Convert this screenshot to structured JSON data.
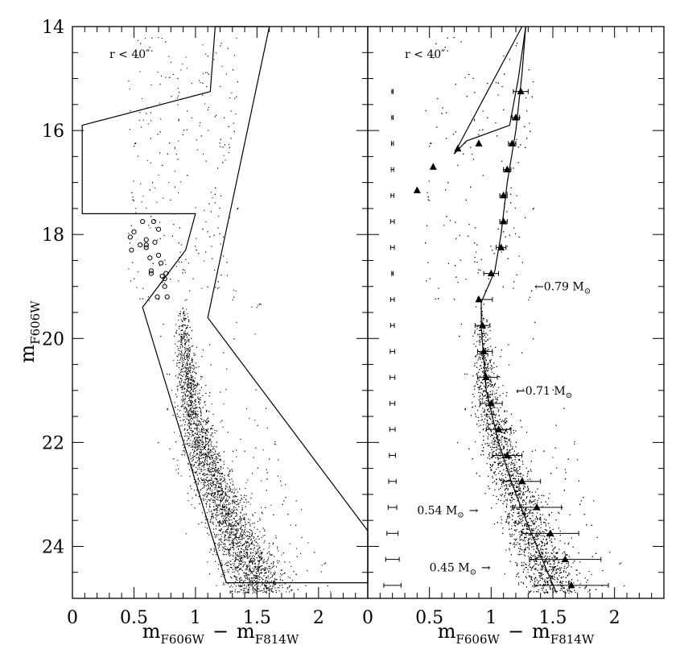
{
  "chart_data": [
    {
      "type": "scatter",
      "panel": "left",
      "annotation": "r < 40″",
      "xlabel": {
        "main": "m",
        "sub1": "F606W",
        "minus": "−",
        "main2": "m",
        "sub2": "F814W"
      },
      "ylabel": {
        "main": "m",
        "sub": "F606W"
      },
      "xlim": [
        0,
        2.4
      ],
      "ylim": [
        25,
        14
      ],
      "x_ticks": [
        0,
        0.5,
        1,
        1.5,
        2
      ],
      "x_tick_labels": [
        "0",
        "0.5",
        "1",
        "1.5",
        "2"
      ],
      "y_ticks": [
        14,
        16,
        18,
        20,
        22,
        24
      ],
      "y_tick_labels": [
        "14",
        "16",
        "18",
        "20",
        "22",
        "24"
      ],
      "selection_polygon": [
        [
          1.6,
          14.0
        ],
        [
          1.1,
          19.6
        ],
        [
          2.4,
          23.7
        ],
        [
          2.4,
          24.7
        ],
        [
          1.25,
          24.7
        ],
        [
          0.57,
          19.4
        ],
        [
          0.92,
          18.3
        ],
        [
          1.0,
          17.6
        ],
        [
          0.08,
          17.6
        ],
        [
          0.08,
          15.9
        ],
        [
          1.12,
          15.25
        ],
        [
          1.16,
          14.0
        ]
      ],
      "main_sequence_ridge": [
        [
          0.9,
          19.4
        ],
        [
          0.9,
          20.0
        ],
        [
          0.95,
          21.0
        ],
        [
          1.03,
          22.0
        ],
        [
          1.15,
          22.8
        ],
        [
          1.32,
          23.7
        ],
        [
          1.5,
          24.7
        ]
      ],
      "blue_stragglers": [
        [
          0.47,
          18.05
        ],
        [
          0.5,
          17.95
        ],
        [
          0.48,
          18.3
        ],
        [
          0.55,
          18.2
        ],
        [
          0.57,
          17.75
        ],
        [
          0.6,
          18.1
        ],
        [
          0.6,
          18.2
        ],
        [
          0.63,
          18.45
        ],
        [
          0.66,
          17.75
        ],
        [
          0.67,
          18.15
        ],
        [
          0.7,
          17.9
        ],
        [
          0.7,
          18.4
        ],
        [
          0.72,
          18.55
        ],
        [
          0.73,
          18.8
        ],
        [
          0.75,
          18.85
        ],
        [
          0.75,
          19.0
        ],
        [
          0.76,
          18.75
        ],
        [
          0.77,
          19.2
        ],
        [
          0.69,
          19.2
        ],
        [
          0.64,
          18.7
        ],
        [
          0.64,
          18.75
        ],
        [
          0.6,
          18.25
        ]
      ]
    },
    {
      "type": "scatter",
      "panel": "right",
      "annotation": "r < 40″",
      "xlabel": {
        "main": "m",
        "sub1": "F606W",
        "minus": "−",
        "main2": "m",
        "sub2": "F814W"
      },
      "xlim": [
        0,
        2.4
      ],
      "ylim": [
        25,
        14
      ],
      "x_ticks": [
        0,
        0.5,
        1,
        1.5,
        2
      ],
      "x_tick_labels": [
        "0",
        "0.5",
        "1",
        "1.5",
        "2"
      ],
      "isochrone": [
        [
          1.28,
          14.0
        ],
        [
          1.25,
          14.9
        ],
        [
          1.2,
          16.0
        ],
        [
          1.13,
          17.0
        ],
        [
          1.08,
          18.0
        ],
        [
          1.03,
          18.7
        ],
        [
          0.92,
          19.3
        ],
        [
          0.92,
          19.8
        ],
        [
          0.96,
          21.0
        ],
        [
          1.06,
          22.0
        ],
        [
          1.17,
          22.8
        ],
        [
          1.3,
          23.6
        ],
        [
          1.44,
          24.4
        ],
        [
          1.53,
          24.9
        ]
      ],
      "hb_loop": [
        [
          1.25,
          14.0
        ],
        [
          0.7,
          16.45
        ],
        [
          0.8,
          16.2
        ],
        [
          1.15,
          15.9
        ],
        [
          1.22,
          15.0
        ],
        [
          1.28,
          14.0
        ]
      ],
      "triangles": [
        [
          1.24,
          15.25
        ],
        [
          1.2,
          15.75
        ],
        [
          1.17,
          16.25
        ],
        [
          1.13,
          16.75
        ],
        [
          1.1,
          17.25
        ],
        [
          1.1,
          17.75
        ],
        [
          1.08,
          18.25
        ],
        [
          1.0,
          18.75
        ],
        [
          0.9,
          19.25
        ],
        [
          0.93,
          19.75
        ],
        [
          0.94,
          20.25
        ],
        [
          0.96,
          20.75
        ],
        [
          1.0,
          21.25
        ],
        [
          1.06,
          21.75
        ],
        [
          1.13,
          22.25
        ],
        [
          1.25,
          22.75
        ],
        [
          1.37,
          23.25
        ],
        [
          1.48,
          23.75
        ],
        [
          1.6,
          24.25
        ],
        [
          1.65,
          24.75
        ],
        [
          0.9,
          16.25
        ],
        [
          0.73,
          16.35
        ],
        [
          0.53,
          16.7
        ],
        [
          0.4,
          17.15
        ]
      ],
      "error_bars": [
        {
          "y": 15.25,
          "c": 1.24,
          "xerr": 0.06
        },
        {
          "y": 15.75,
          "c": 1.2,
          "xerr": 0.03
        },
        {
          "y": 16.25,
          "c": 1.17,
          "xerr": 0.03
        },
        {
          "y": 16.75,
          "c": 1.13,
          "xerr": 0.03
        },
        {
          "y": 17.25,
          "c": 1.1,
          "xerr": 0.03
        },
        {
          "y": 17.75,
          "c": 1.1,
          "xerr": 0.03
        },
        {
          "y": 18.25,
          "c": 1.08,
          "xerr": 0.04
        },
        {
          "y": 18.75,
          "c": 1.0,
          "xerr": 0.06
        },
        {
          "y": 19.25,
          "c": 0.95,
          "xerr": 0.06
        },
        {
          "y": 19.75,
          "c": 0.93,
          "xerr": 0.06
        },
        {
          "y": 20.25,
          "c": 0.95,
          "xerr": 0.06
        },
        {
          "y": 20.75,
          "c": 0.97,
          "xerr": 0.08
        },
        {
          "y": 21.25,
          "c": 1.0,
          "xerr": 0.09
        },
        {
          "y": 21.75,
          "c": 1.06,
          "xerr": 0.1
        },
        {
          "y": 22.25,
          "c": 1.13,
          "xerr": 0.12
        },
        {
          "y": 22.75,
          "c": 1.25,
          "xerr": 0.15
        },
        {
          "y": 23.25,
          "c": 1.37,
          "xerr": 0.2
        },
        {
          "y": 23.75,
          "c": 1.48,
          "xerr": 0.23
        },
        {
          "y": 24.25,
          "c": 1.6,
          "xerr": 0.29
        },
        {
          "y": 24.75,
          "c": 1.65,
          "xerr": 0.3
        }
      ],
      "photometric_errors": [
        {
          "y": 15.25,
          "xerr": 0.005
        },
        {
          "y": 15.75,
          "xerr": 0.006
        },
        {
          "y": 16.25,
          "xerr": 0.008
        },
        {
          "y": 16.75,
          "xerr": 0.01
        },
        {
          "y": 17.25,
          "xerr": 0.012
        },
        {
          "y": 17.75,
          "xerr": 0.015
        },
        {
          "y": 18.25,
          "xerr": 0.015
        },
        {
          "y": 18.75,
          "xerr": 0.006
        },
        {
          "y": 19.25,
          "xerr": 0.015
        },
        {
          "y": 19.75,
          "xerr": 0.015
        },
        {
          "y": 20.25,
          "xerr": 0.018
        },
        {
          "y": 20.75,
          "xerr": 0.02
        },
        {
          "y": 21.25,
          "xerr": 0.02
        },
        {
          "y": 21.75,
          "xerr": 0.022
        },
        {
          "y": 22.25,
          "xerr": 0.025
        },
        {
          "y": 22.75,
          "xerr": 0.03
        },
        {
          "y": 23.25,
          "xerr": 0.035
        },
        {
          "y": 23.75,
          "xerr": 0.045
        },
        {
          "y": 24.25,
          "xerr": 0.055
        },
        {
          "y": 24.75,
          "xerr": 0.07
        }
      ],
      "error_x_center": 0.2,
      "mass_labels": [
        {
          "text": "←0.79 M",
          "sym": "⊙",
          "x": 1.35,
          "y": 19.0
        },
        {
          "text": "←0.71 M",
          "sym": "⊙",
          "x": 1.2,
          "y": 21.0
        },
        {
          "text": "0.54 M",
          "sym": "⊙",
          "arrow": "→",
          "x": 0.4,
          "y": 23.3
        },
        {
          "text": "0.45 M",
          "sym": "⊙",
          "arrow": "→",
          "x": 0.5,
          "y": 24.4
        }
      ]
    }
  ]
}
